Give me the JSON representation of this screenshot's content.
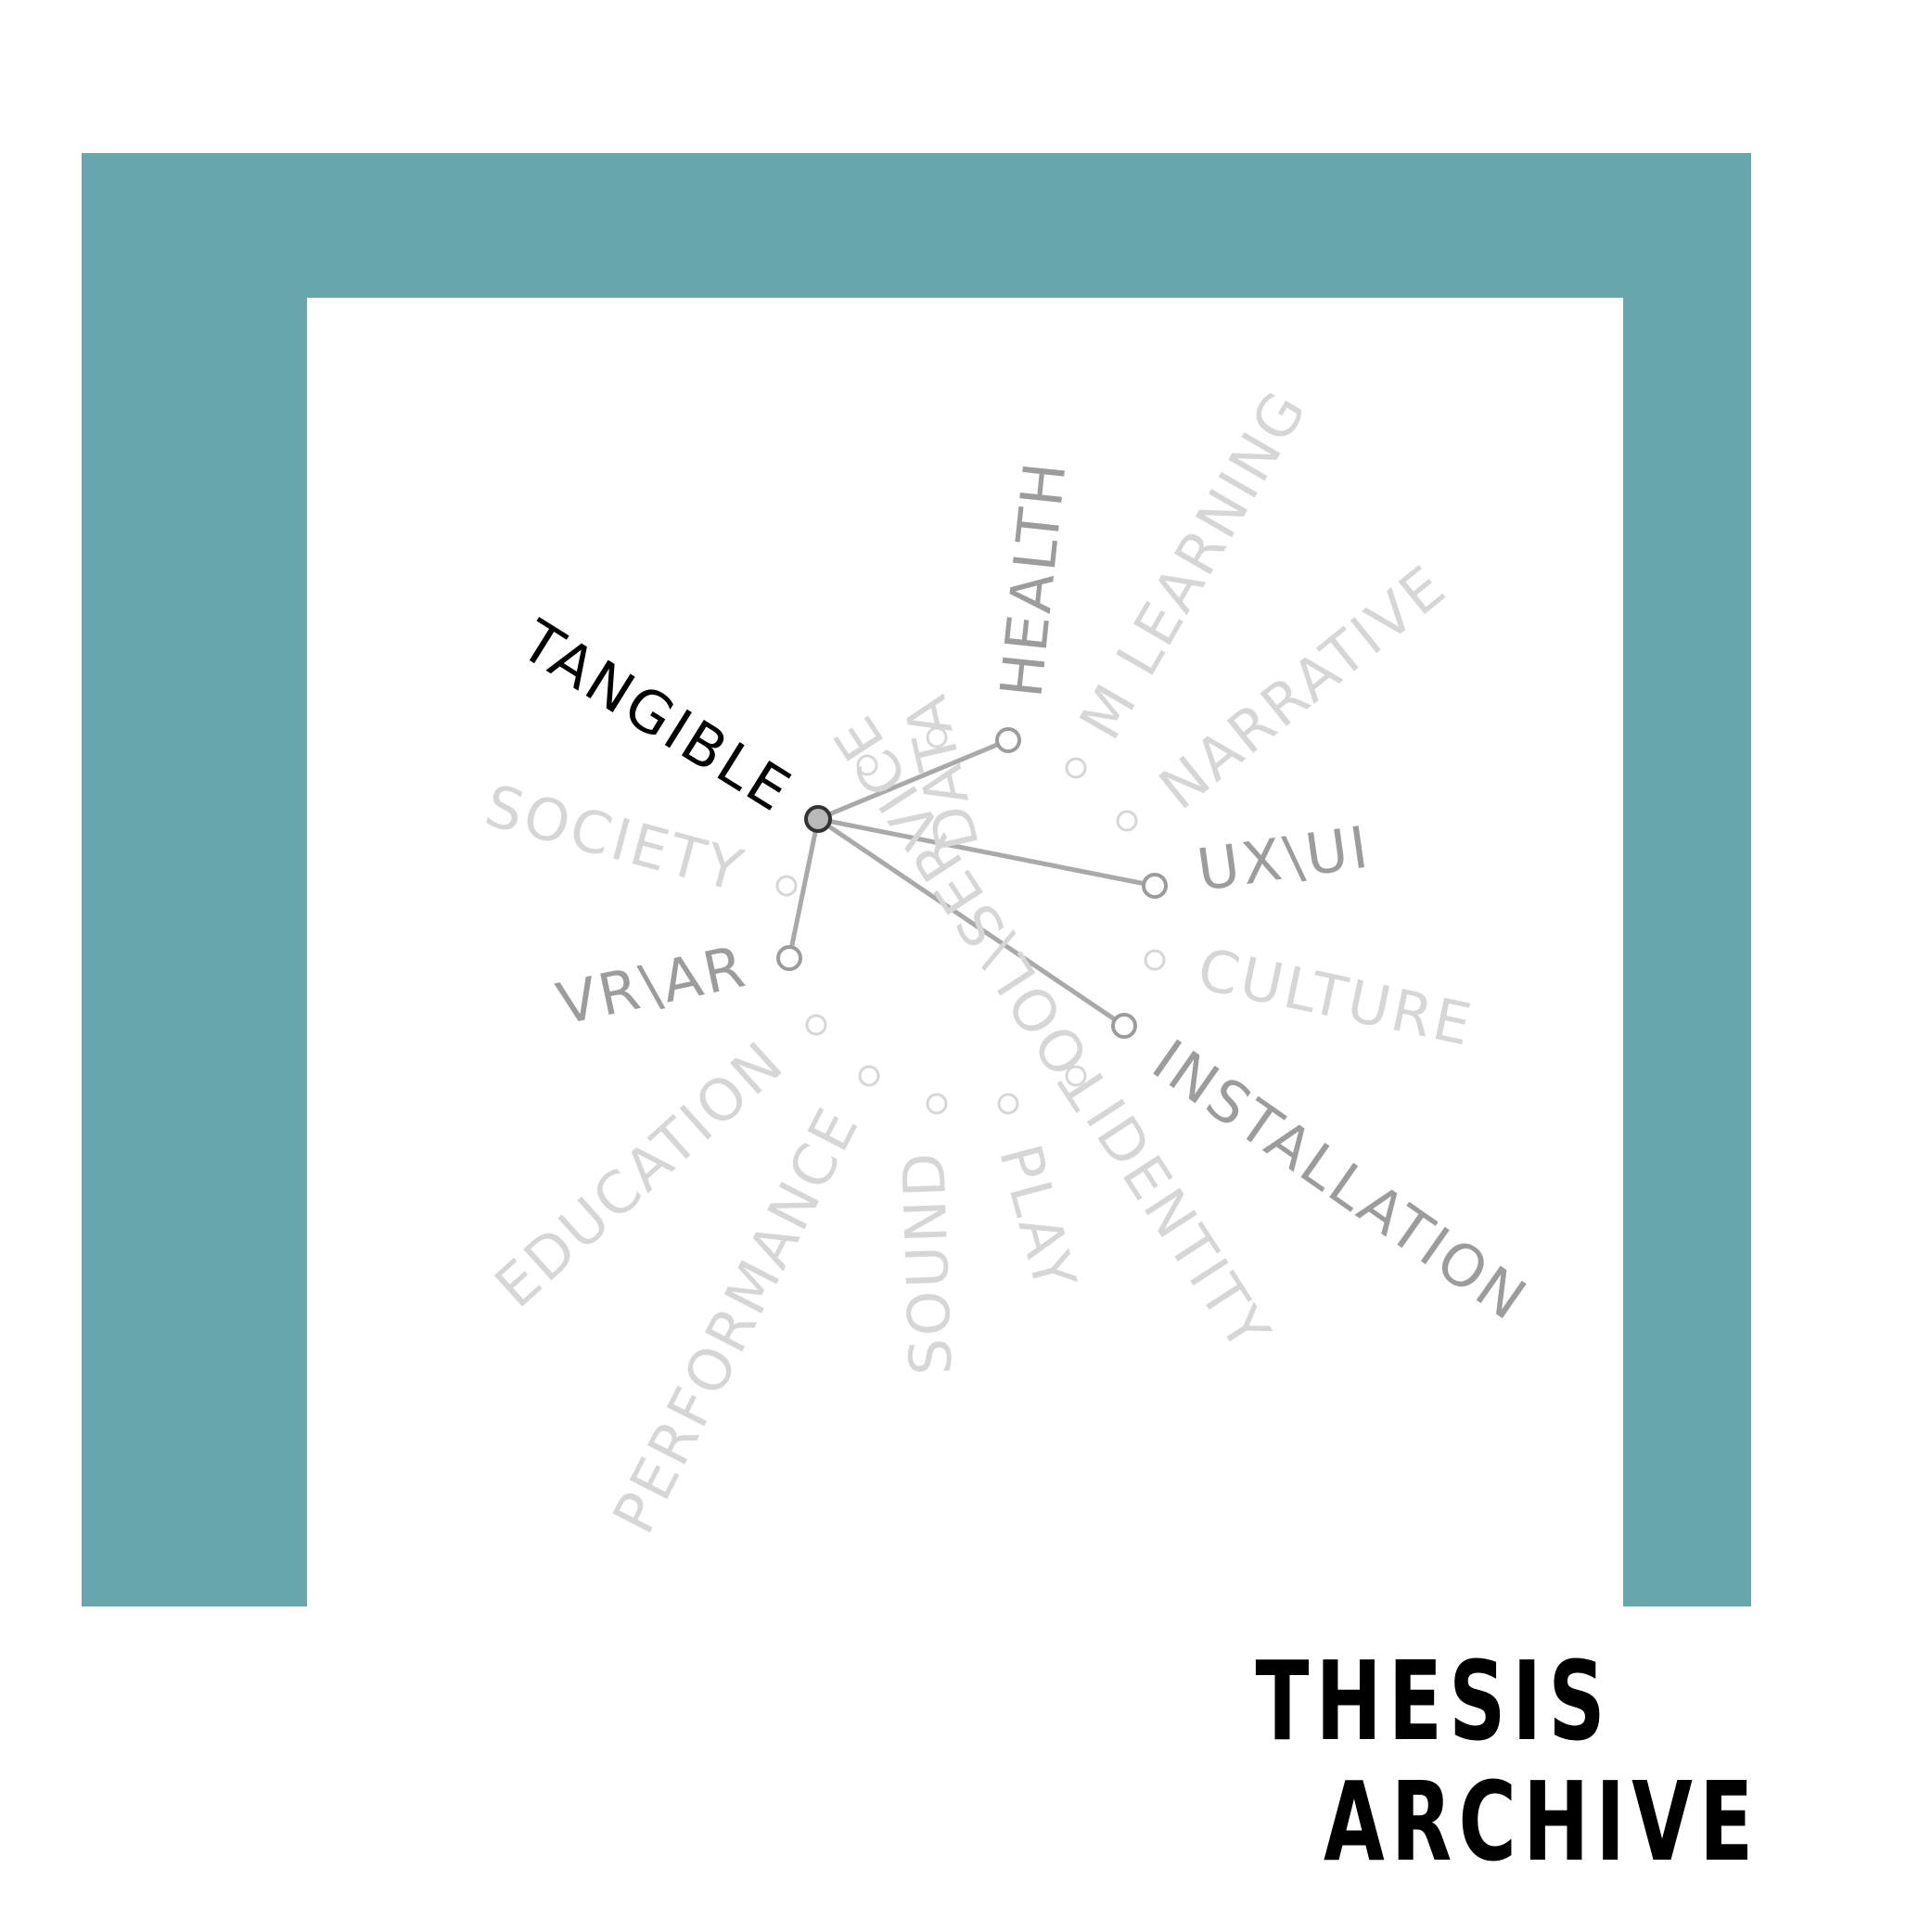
{
  "colors": {
    "frame": "#68a5ad",
    "faded_term": "#d6d6d6",
    "connected_term": "#9c9c9c",
    "active_term": "#000000",
    "link_line": "#a9a9a9",
    "node_stroke": "#9c9c9c",
    "active_node_fill": "#b9b9b9"
  },
  "diagram": {
    "active_term": "TANGIBLE",
    "connected_terms": [
      "HEALTH",
      "UX\\UI",
      "INSTALLATION",
      "VR\\AR"
    ],
    "faded_terms": [
      "TOOL\\SERVICE",
      "DATA",
      "M LEARNING",
      "NARRATIVE",
      "CULTURE",
      "IDENTITY",
      "PLAY",
      "SOUND",
      "PERFORMANCE",
      "EDUCATION",
      "SOCIETY"
    ]
  },
  "caption": {
    "line1": "THESIS",
    "line2": "ARCHIVE"
  }
}
